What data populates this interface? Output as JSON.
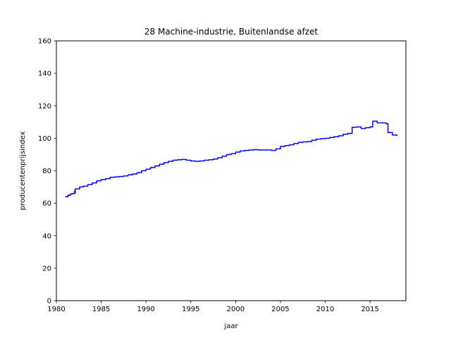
{
  "chart_data": {
    "type": "line",
    "title": "28 Machine-industrie, Buitenlandse afzet",
    "xlabel": "jaar",
    "ylabel": "producentenprijsindex",
    "xlim": [
      1980,
      2019
    ],
    "ylim": [
      0,
      160
    ],
    "xticks": [
      1980,
      1985,
      1990,
      1995,
      2000,
      2005,
      2010,
      2015
    ],
    "yticks": [
      0,
      20,
      40,
      60,
      80,
      100,
      120,
      140,
      160
    ],
    "grid": false,
    "colors": {
      "segment_1": "#ff0000",
      "segment_2": "#0000ff"
    },
    "series": [
      {
        "name": "segment_1",
        "color": "#ff0000",
        "x": [
          1981.0,
          1981.3,
          1981.6,
          1981.9,
          1982.0,
          1982.1
        ],
        "y": [
          64.0,
          65.0,
          65.8,
          66.0,
          67.5,
          68.8
        ]
      },
      {
        "name": "segment_2",
        "color": "#0000ff",
        "x": [
          1981.0,
          1981.3,
          1981.6,
          1981.9,
          1982.1,
          1982.6,
          1983.0,
          1983.5,
          1984.0,
          1984.5,
          1985.0,
          1985.5,
          1986.0,
          1986.5,
          1987.0,
          1987.5,
          1988.0,
          1988.5,
          1989.0,
          1989.5,
          1990.0,
          1990.5,
          1991.0,
          1991.5,
          1992.0,
          1992.5,
          1993.0,
          1993.5,
          1994.0,
          1994.5,
          1995.0,
          1995.5,
          1996.0,
          1996.5,
          1997.0,
          1997.5,
          1998.0,
          1998.5,
          1999.0,
          1999.5,
          2000.0,
          2000.5,
          2001.0,
          2001.5,
          2002.0,
          2002.5,
          2003.0,
          2003.5,
          2004.0,
          2004.5,
          2005.0,
          2005.5,
          2006.0,
          2006.5,
          2007.0,
          2007.5,
          2008.0,
          2008.5,
          2009.0,
          2009.5,
          2010.0,
          2010.5,
          2011.0,
          2011.5,
          2012.0,
          2012.5,
          2013.0,
          2013.5,
          2014.0,
          2014.5,
          2015.0,
          2015.3,
          2015.8,
          2016.2,
          2016.8,
          2017.0,
          2017.5,
          2018.0
        ],
        "y": [
          64.0,
          65.0,
          65.8,
          66.0,
          68.8,
          70.0,
          70.5,
          71.5,
          72.5,
          73.8,
          74.5,
          75.2,
          76.0,
          76.2,
          76.5,
          76.8,
          77.5,
          78.0,
          78.8,
          80.0,
          81.0,
          82.0,
          83.0,
          84.0,
          85.0,
          85.8,
          86.5,
          86.8,
          87.0,
          86.5,
          86.0,
          85.8,
          86.0,
          86.5,
          86.8,
          87.2,
          88.0,
          89.0,
          90.0,
          90.5,
          91.5,
          92.2,
          92.5,
          92.8,
          93.0,
          92.8,
          92.8,
          92.8,
          92.5,
          93.5,
          95.0,
          95.5,
          96.0,
          96.8,
          97.5,
          97.8,
          98.0,
          98.8,
          99.5,
          99.8,
          100.0,
          100.5,
          101.0,
          101.5,
          102.5,
          103.0,
          106.8,
          107.0,
          106.0,
          106.5,
          107.0,
          110.5,
          109.5,
          109.5,
          109.0,
          103.5,
          102.0,
          101.5
        ]
      }
    ]
  }
}
